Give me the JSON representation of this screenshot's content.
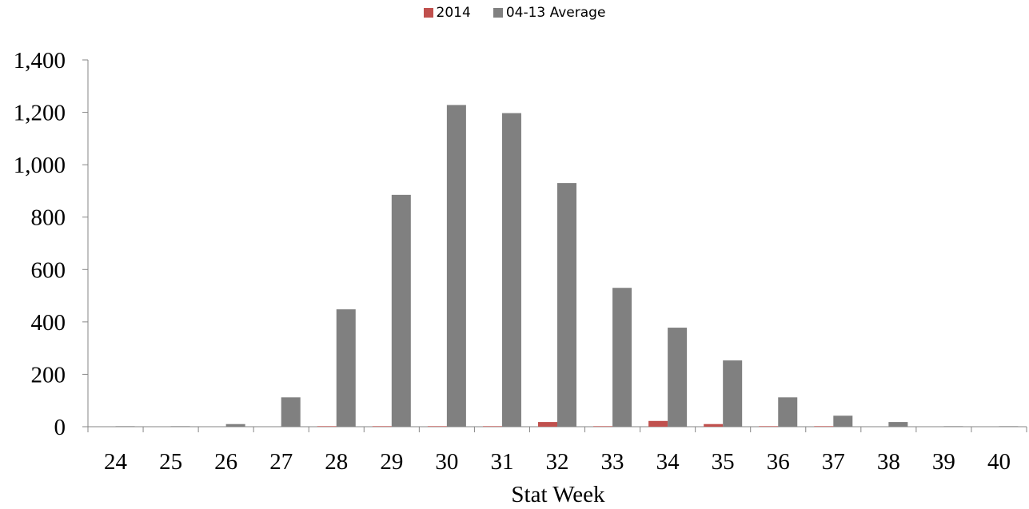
{
  "colors": {
    "series_2014": "#c0504d",
    "series_avg": "#808080",
    "axis": "#868686"
  },
  "legend": {
    "items": [
      {
        "label": "2014"
      },
      {
        "label": "04-13 Average"
      }
    ],
    "placement": "top-center"
  },
  "chart_data": {
    "type": "bar",
    "title": "",
    "xlabel": "Stat Week",
    "ylabel": "",
    "ylim": [
      0,
      1400
    ],
    "yticks": [
      "0",
      "200",
      "400",
      "600",
      "800",
      "1,000",
      "1,200",
      "1,400"
    ],
    "ytick_values": [
      0,
      200,
      400,
      600,
      800,
      1000,
      1200,
      1400
    ],
    "grid": false,
    "categories": [
      "24",
      "25",
      "26",
      "27",
      "28",
      "29",
      "30",
      "31",
      "32",
      "33",
      "34",
      "35",
      "36",
      "37",
      "38",
      "39",
      "40"
    ],
    "series": [
      {
        "name": "2014",
        "values": [
          0,
          0,
          0,
          0,
          2,
          2,
          2,
          2,
          18,
          2,
          22,
          10,
          2,
          2,
          0,
          0,
          0
        ]
      },
      {
        "name": "04-13 Average",
        "values": [
          2,
          2,
          10,
          112,
          448,
          885,
          1228,
          1197,
          930,
          530,
          378,
          253,
          112,
          42,
          18,
          2,
          2
        ]
      }
    ]
  }
}
